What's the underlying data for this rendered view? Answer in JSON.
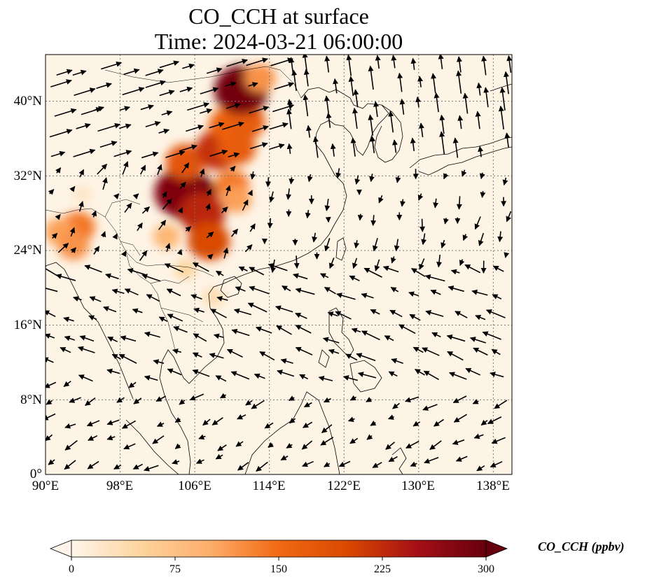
{
  "title": {
    "line1": "CO_CCH at surface",
    "line2": "Time: 2024-03-21 06:00:00"
  },
  "axes": {
    "lat_labels": [
      "40°N",
      "32°N",
      "24°N",
      "16°N",
      "8°N",
      "0°"
    ],
    "lat_values": [
      40,
      32,
      24,
      16,
      8,
      0
    ],
    "lon_labels": [
      "90°E",
      "98°E",
      "106°E",
      "114°E",
      "122°E",
      "130°E",
      "138°E"
    ],
    "lon_values": [
      90,
      98,
      106,
      114,
      122,
      130,
      138
    ],
    "lon_range": [
      90,
      140
    ],
    "lat_range": [
      0,
      45
    ]
  },
  "colorbar": {
    "title": "CO_CCH (ppbv)",
    "tick_labels": [
      "0",
      "75",
      "150",
      "225",
      "300"
    ],
    "tick_values": [
      0,
      75,
      150,
      225,
      300
    ],
    "range": [
      0,
      300
    ],
    "extend": "both",
    "colormap": [
      "#fff5eb",
      "#fdd49e",
      "#fdae6b",
      "#f16913",
      "#d94801",
      "#a50f15",
      "#67000d"
    ]
  },
  "field": {
    "background": "#fef4e6",
    "plumes": [
      {
        "lon": 105.4,
        "lat": 29.8,
        "value": 300
      },
      {
        "lon": 104.5,
        "lat": 30.2,
        "value": 280
      },
      {
        "lon": 106.8,
        "lat": 28.0,
        "value": 230
      },
      {
        "lon": 105.0,
        "lat": 33.5,
        "value": 180
      },
      {
        "lon": 108.5,
        "lat": 34.8,
        "value": 220
      },
      {
        "lon": 110.5,
        "lat": 35.0,
        "value": 170
      },
      {
        "lon": 109.5,
        "lat": 37.5,
        "value": 160
      },
      {
        "lon": 111.5,
        "lat": 37.8,
        "value": 170
      },
      {
        "lon": 110.0,
        "lat": 31.0,
        "value": 140
      },
      {
        "lon": 107.5,
        "lat": 25.0,
        "value": 200
      },
      {
        "lon": 110.5,
        "lat": 29.5,
        "value": 110
      },
      {
        "lon": 111.0,
        "lat": 41.2,
        "value": 290
      },
      {
        "lon": 113.0,
        "lat": 42.5,
        "value": 120
      },
      {
        "lon": 93.5,
        "lat": 26.5,
        "value": 140
      },
      {
        "lon": 91.5,
        "lat": 26.0,
        "value": 110
      },
      {
        "lon": 93.0,
        "lat": 24.5,
        "value": 120
      },
      {
        "lon": 103.0,
        "lat": 25.5,
        "value": 90
      },
      {
        "lon": 105.0,
        "lat": 22.0,
        "value": 50
      },
      {
        "lon": 108.0,
        "lat": 19.0,
        "value": 40
      },
      {
        "lon": 94.0,
        "lat": 30.0,
        "value": 25
      }
    ]
  }
}
